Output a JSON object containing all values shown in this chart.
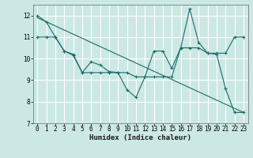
{
  "xlabel": "Humidex (Indice chaleur)",
  "ylabel": "",
  "xlim": [
    -0.5,
    23.5
  ],
  "ylim": [
    7.0,
    12.5
  ],
  "yticks": [
    7,
    8,
    9,
    10,
    11,
    12
  ],
  "xticks": [
    0,
    1,
    2,
    3,
    4,
    5,
    6,
    7,
    8,
    9,
    10,
    11,
    12,
    13,
    14,
    15,
    16,
    17,
    18,
    19,
    20,
    21,
    22,
    23
  ],
  "background_color": "#cce8e4",
  "grid_color": "#ffffff",
  "line_color": "#1a6b6b",
  "series": {
    "line1": [
      12.0,
      11.7,
      11.0,
      10.35,
      10.2,
      9.35,
      9.85,
      9.7,
      9.4,
      9.35,
      8.55,
      8.2,
      9.15,
      10.35,
      10.35,
      9.55,
      10.5,
      12.3,
      10.75,
      10.25,
      10.2,
      8.6,
      7.5,
      7.5
    ],
    "line2": [
      11.0,
      11.0,
      11.0,
      10.35,
      10.15,
      9.35,
      9.35,
      9.35,
      9.35,
      9.35,
      9.35,
      9.15,
      9.15,
      9.15,
      9.15,
      9.15,
      10.5,
      10.5,
      10.5,
      10.25,
      10.25,
      10.25,
      11.0,
      11.0
    ],
    "line3_slope": {
      "x0": 0,
      "y0": 11.9,
      "x1": 23,
      "y1": 7.5
    }
  },
  "marker": "+",
  "xlabel_fontsize": 6.5,
  "tick_fontsize": 5.5
}
